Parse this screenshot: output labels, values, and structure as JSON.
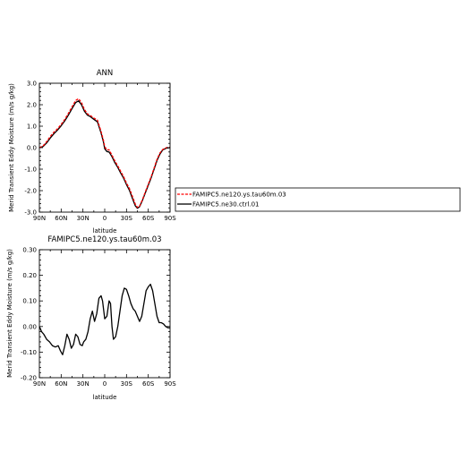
{
  "chart_data": [
    {
      "type": "line",
      "title": "ANN",
      "xlabel": "latitude",
      "ylabel": "Merid Transient Eddy Moisture (m/s g/kg)",
      "xlim": [
        90,
        -90
      ],
      "ylim": [
        -3.0,
        3.0
      ],
      "x_tick_values": [
        90,
        60,
        30,
        0,
        -30,
        -60,
        -90
      ],
      "x_tick_labels": [
        "90N",
        "60N",
        "30N",
        "0",
        "30S",
        "60S",
        "90S"
      ],
      "y_tick_values": [
        3,
        2,
        1,
        0,
        -1,
        -2,
        -3
      ],
      "y_tick_labels": [
        "3.0",
        "2.0",
        "1.0",
        "0.0",
        "-1.0",
        "-2.0",
        "-3.0"
      ],
      "x": [
        90,
        85,
        80,
        75,
        70,
        65,
        60,
        55,
        50,
        45,
        40,
        36,
        32,
        28,
        24,
        20,
        15,
        10,
        5,
        2,
        0,
        -3,
        -6,
        -10,
        -14,
        -18,
        -22,
        -26,
        -30,
        -34,
        -38,
        -42,
        -45,
        -48,
        -52,
        -56,
        -60,
        -64,
        -68,
        -72,
        -76,
        -80,
        -85,
        -90
      ],
      "series": [
        {
          "name": "FAMIPC5.ne120.ys.tau60m.03",
          "color": "#ff0000",
          "dash": "dashed",
          "values": [
            0.0,
            0.08,
            0.28,
            0.52,
            0.72,
            0.88,
            1.08,
            1.32,
            1.6,
            1.9,
            2.2,
            2.28,
            2.1,
            1.78,
            1.58,
            1.5,
            1.38,
            1.28,
            0.75,
            0.38,
            0.05,
            -0.1,
            -0.1,
            -0.35,
            -0.62,
            -0.85,
            -1.1,
            -1.35,
            -1.65,
            -1.9,
            -2.25,
            -2.62,
            -2.78,
            -2.72,
            -2.42,
            -2.05,
            -1.7,
            -1.35,
            -0.95,
            -0.55,
            -0.25,
            -0.08,
            0.0,
            0.02
          ]
        },
        {
          "name": "FAMIPC5.ne30.ctrl.01",
          "color": "#000000",
          "dash": "solid",
          "values": [
            0.0,
            0.05,
            0.22,
            0.45,
            0.65,
            0.82,
            1.02,
            1.25,
            1.52,
            1.82,
            2.1,
            2.18,
            2.0,
            1.7,
            1.52,
            1.45,
            1.32,
            1.2,
            0.68,
            0.3,
            -0.05,
            -0.18,
            -0.2,
            -0.42,
            -0.7,
            -0.92,
            -1.18,
            -1.42,
            -1.72,
            -1.98,
            -2.35,
            -2.7,
            -2.82,
            -2.75,
            -2.45,
            -2.1,
            -1.75,
            -1.4,
            -1.0,
            -0.6,
            -0.3,
            -0.1,
            -0.02,
            0.0
          ]
        }
      ],
      "legend_position": "right"
    },
    {
      "type": "line",
      "title": "FAMIPC5.ne120.ys.tau60m.03",
      "xlabel": "latitude",
      "ylabel": "Merid Transient Eddy Moisture (m/s g/kg)",
      "xlim": [
        90,
        -90
      ],
      "ylim": [
        -0.2,
        0.3
      ],
      "x_tick_values": [
        90,
        60,
        30,
        0,
        -30,
        -60,
        -90
      ],
      "x_tick_labels": [
        "90N",
        "60N",
        "30N",
        "0",
        "30S",
        "60S",
        "90S"
      ],
      "y_tick_values": [
        0.3,
        0.2,
        0.1,
        0.0,
        -0.1,
        -0.2
      ],
      "y_tick_labels": [
        "0.30",
        "0.20",
        "0.10",
        "0.00",
        "-0.10",
        "-0.20"
      ],
      "x": [
        90,
        87,
        84,
        80,
        76,
        72,
        68,
        64,
        61,
        58,
        55,
        52,
        49,
        46,
        43,
        40,
        37,
        34,
        31,
        29,
        26,
        23,
        20,
        17,
        14,
        11,
        8,
        5,
        3,
        0,
        -3,
        -6,
        -8,
        -10,
        -12,
        -15,
        -18,
        -21,
        -24,
        -27,
        -30,
        -33,
        -36,
        -39,
        -42,
        -45,
        -48,
        -51,
        -54,
        -57,
        -60,
        -63,
        -66,
        -69,
        -72,
        -75,
        -78,
        -81,
        -84,
        -87,
        -90
      ],
      "series": [
        {
          "name": "FAMIPC5.ne120.ys.tau60m.03",
          "color": "#000000",
          "dash": "solid",
          "values": [
            0.0,
            -0.02,
            -0.03,
            -0.05,
            -0.06,
            -0.075,
            -0.08,
            -0.075,
            -0.095,
            -0.11,
            -0.075,
            -0.03,
            -0.05,
            -0.085,
            -0.07,
            -0.03,
            -0.04,
            -0.07,
            -0.075,
            -0.06,
            -0.05,
            -0.02,
            0.03,
            0.06,
            0.02,
            0.05,
            0.11,
            0.12,
            0.1,
            0.03,
            0.04,
            0.1,
            0.09,
            0.0,
            -0.05,
            -0.04,
            0.0,
            0.06,
            0.12,
            0.15,
            0.145,
            0.12,
            0.09,
            0.07,
            0.06,
            0.04,
            0.02,
            0.04,
            0.09,
            0.14,
            0.155,
            0.165,
            0.14,
            0.09,
            0.04,
            0.015,
            0.015,
            0.01,
            0.0,
            -0.005,
            -0.005
          ]
        }
      ]
    }
  ]
}
